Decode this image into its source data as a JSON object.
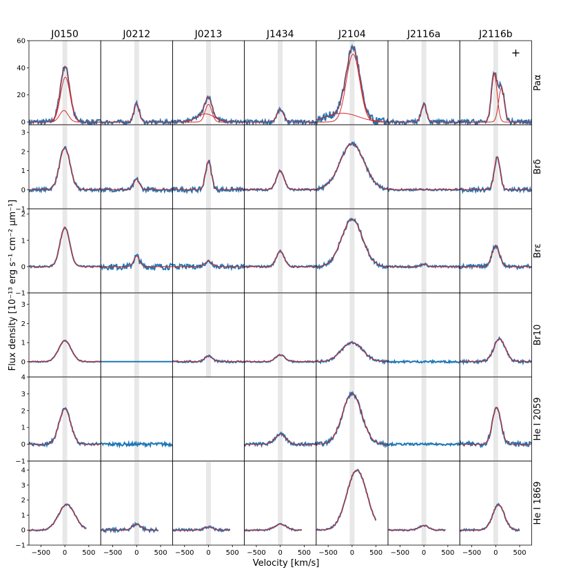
{
  "chart_data": {
    "type": "line",
    "xlabel": "Velocity [km/s]",
    "ylabel": "Flux density [10⁻¹³ erg s⁻¹ cm⁻² μm⁻¹]",
    "columns": [
      "J0150",
      "J0212",
      "J0213",
      "J1434",
      "J2104",
      "J2116a",
      "J2116b"
    ],
    "rows": [
      "Paα",
      "Brδ",
      "Brε",
      "Br10",
      "He I 2059",
      "He I 1869"
    ],
    "xlim": [
      -750,
      750
    ],
    "xticks": [
      -500,
      0,
      500
    ],
    "xtick_labels": [
      "−500",
      "0",
      "500"
    ],
    "shaded_band_kms": [
      -50,
      50
    ],
    "row_axes": [
      {
        "ylim": [
          -2,
          60
        ],
        "yticks": [
          0,
          20,
          40,
          60
        ],
        "ytick_labels": [
          "0",
          "20",
          "40",
          "60"
        ]
      },
      {
        "ylim": [
          -1,
          3.4
        ],
        "yticks": [
          -1,
          0,
          1,
          2,
          3
        ],
        "ytick_labels": [
          "−1",
          "0",
          "1",
          "2",
          "3"
        ]
      },
      {
        "ylim": [
          -1,
          2.2
        ],
        "yticks": [
          -1,
          0,
          1,
          2
        ],
        "ytick_labels": [
          "−1",
          "0",
          "1",
          "2"
        ]
      },
      {
        "ylim": [
          -0.8,
          3.6
        ],
        "yticks": [
          0,
          1,
          2,
          3
        ],
        "ytick_labels": [
          "0",
          "1",
          "2",
          "3"
        ]
      },
      {
        "ylim": [
          -1,
          4
        ],
        "yticks": [
          -1,
          0,
          1,
          2,
          3,
          4
        ],
        "ytick_labels": [
          "−1",
          "0",
          "1",
          "2",
          "3",
          "4"
        ]
      },
      {
        "ylim": [
          -1,
          4.6
        ],
        "yticks": [
          -1,
          0,
          1,
          2,
          3,
          4
        ],
        "ytick_labels": [
          "−1",
          "0",
          "1",
          "2",
          "3",
          "4"
        ]
      }
    ],
    "annotation": "+",
    "colors": {
      "data": "#1f77b4",
      "fit": "#d62728",
      "band": "#e8e8e8"
    },
    "panels": [
      [
        {
          "empty": false,
          "x_range": [
            -750,
            750
          ],
          "noise": 0.4,
          "components": [
            [
              8.5,
              -20,
              90
            ],
            [
              33,
              10,
              100
            ]
          ]
        },
        {
          "empty": false,
          "x_range": [
            -750,
            750
          ],
          "noise": 0.25,
          "components": [
            [
              2.2,
              0,
              110
            ]
          ]
        },
        {
          "empty": false,
          "x_range": [
            -750,
            750
          ],
          "noise": 0.12,
          "components": [
            [
              1.5,
              0,
              100
            ]
          ]
        },
        {
          "empty": false,
          "x_range": [
            -750,
            750
          ],
          "noise": 0.07,
          "components": [
            [
              1.1,
              0,
              130
            ]
          ]
        },
        {
          "empty": false,
          "x_range": [
            -750,
            750
          ],
          "noise": 0.25,
          "components": [
            [
              2.1,
              0,
              120
            ]
          ]
        },
        {
          "empty": false,
          "x_range": [
            -750,
            450
          ],
          "noise": 0.12,
          "components": [
            [
              1.7,
              40,
              170
            ]
          ]
        }
      ],
      [
        {
          "empty": false,
          "x_range": [
            -750,
            750
          ],
          "noise": 0.3,
          "components": [
            [
              13.5,
              0,
              55
            ]
          ]
        },
        {
          "empty": false,
          "x_range": [
            -750,
            750
          ],
          "noise": 0.3,
          "components": [
            [
              0.55,
              0,
              60
            ]
          ]
        },
        {
          "empty": false,
          "x_range": [
            -750,
            750
          ],
          "noise": 0.45,
          "components": [
            [
              0.4,
              0,
              60
            ]
          ]
        },
        {
          "empty": false,
          "x_range": [
            -750,
            750
          ],
          "noise": 0.0,
          "components": []
        },
        {
          "empty": false,
          "x_range": [
            -750,
            750
          ],
          "noise": 0.25,
          "components": []
        },
        {
          "empty": false,
          "x_range": [
            -750,
            450
          ],
          "noise": 0.25,
          "components": [
            [
              0.4,
              0,
              90
            ]
          ]
        }
      ],
      [
        {
          "empty": false,
          "x_range": [
            -750,
            750
          ],
          "noise": 0.3,
          "components": [
            [
              13,
              0,
              70
            ],
            [
              6,
              -60,
              180
            ]
          ]
        },
        {
          "empty": false,
          "x_range": [
            -750,
            750
          ],
          "noise": 0.35,
          "components": [
            [
              1.5,
              0,
              60
            ]
          ]
        },
        {
          "empty": false,
          "x_range": [
            -750,
            750
          ],
          "noise": 0.35,
          "components": [
            [
              0.2,
              0,
              80
            ]
          ]
        },
        {
          "empty": false,
          "x_range": [
            -750,
            750
          ],
          "noise": 0.15,
          "components": [
            [
              0.3,
              0,
              80
            ]
          ]
        },
        {
          "empty": true
        },
        {
          "empty": false,
          "x_range": [
            -750,
            450
          ],
          "noise": 0.2,
          "components": [
            [
              0.2,
              0,
              90
            ]
          ]
        }
      ],
      [
        {
          "empty": false,
          "x_range": [
            -750,
            750
          ],
          "noise": 0.3,
          "components": [
            [
              9,
              0,
              70
            ]
          ]
        },
        {
          "empty": false,
          "x_range": [
            -750,
            750
          ],
          "noise": 0.15,
          "components": [
            [
              1.0,
              0,
              80
            ]
          ]
        },
        {
          "empty": false,
          "x_range": [
            -750,
            750
          ],
          "noise": 0.15,
          "components": [
            [
              0.6,
              0,
              80
            ]
          ]
        },
        {
          "empty": false,
          "x_range": [
            -750,
            750
          ],
          "noise": 0.1,
          "components": [
            [
              0.35,
              0,
              100
            ]
          ]
        },
        {
          "empty": false,
          "x_range": [
            -750,
            750
          ],
          "noise": 0.25,
          "components": [
            [
              0.6,
              0,
              110
            ]
          ]
        },
        {
          "empty": false,
          "x_range": [
            -750,
            450
          ],
          "noise": 0.12,
          "components": [
            [
              0.4,
              0,
              120
            ]
          ]
        }
      ],
      [
        {
          "empty": false,
          "x_range": [
            -750,
            750
          ],
          "noise": 0.6,
          "components": [
            [
              50,
              20,
              140
            ],
            [
              6.5,
              -200,
              330
            ]
          ]
        },
        {
          "empty": false,
          "x_range": [
            -750,
            750
          ],
          "noise": 0.25,
          "components": [
            [
              2.4,
              0,
              250
            ]
          ]
        },
        {
          "empty": false,
          "x_range": [
            -750,
            750
          ],
          "noise": 0.3,
          "components": [
            [
              1.8,
              0,
              220
            ]
          ]
        },
        {
          "empty": false,
          "x_range": [
            -750,
            750
          ],
          "noise": 0.2,
          "components": [
            [
              1.0,
              0,
              220
            ]
          ]
        },
        {
          "empty": false,
          "x_range": [
            -750,
            750
          ],
          "noise": 0.3,
          "components": [
            [
              3.0,
              0,
              200
            ]
          ]
        },
        {
          "empty": false,
          "x_range": [
            -750,
            500
          ],
          "noise": 0.15,
          "components": [
            [
              4.0,
              100,
              210
            ]
          ]
        }
      ],
      [
        {
          "empty": false,
          "x_range": [
            -750,
            750
          ],
          "noise": 0.3,
          "components": [
            [
              13.5,
              0,
              55
            ]
          ]
        },
        {
          "empty": false,
          "x_range": [
            -750,
            750
          ],
          "noise": 0.15,
          "components": [
            [
              0.0,
              0,
              60
            ]
          ]
        },
        {
          "empty": false,
          "x_range": [
            -750,
            750
          ],
          "noise": 0.15,
          "components": [
            [
              0.1,
              0,
              60
            ]
          ]
        },
        {
          "empty": false,
          "x_range": [
            -750,
            750
          ],
          "noise": 0.15,
          "components": []
        },
        {
          "empty": false,
          "x_range": [
            -750,
            750
          ],
          "noise": 0.15,
          "components": []
        },
        {
          "empty": false,
          "x_range": [
            -750,
            450
          ],
          "noise": 0.1,
          "components": [
            [
              0.3,
              0,
              100
            ]
          ]
        }
      ],
      [
        {
          "empty": false,
          "x_range": [
            -750,
            750
          ],
          "noise": 0.4,
          "components": [
            [
              35,
              -30,
              60
            ],
            [
              25,
              120,
              60
            ]
          ]
        },
        {
          "empty": false,
          "x_range": [
            -750,
            750
          ],
          "noise": 0.3,
          "components": [
            [
              1.7,
              30,
              60
            ]
          ]
        },
        {
          "empty": false,
          "x_range": [
            -750,
            750
          ],
          "noise": 0.3,
          "components": [
            [
              0.8,
              0,
              80
            ]
          ]
        },
        {
          "empty": false,
          "x_range": [
            -750,
            750
          ],
          "noise": 0.2,
          "components": [
            [
              1.2,
              80,
              120
            ]
          ]
        },
        {
          "empty": false,
          "x_range": [
            -750,
            750
          ],
          "noise": 0.35,
          "components": [
            [
              2.2,
              20,
              90
            ]
          ]
        },
        {
          "empty": false,
          "x_range": [
            -750,
            500
          ],
          "noise": 0.15,
          "components": [
            [
              1.7,
              60,
              120
            ]
          ]
        }
      ]
    ]
  }
}
